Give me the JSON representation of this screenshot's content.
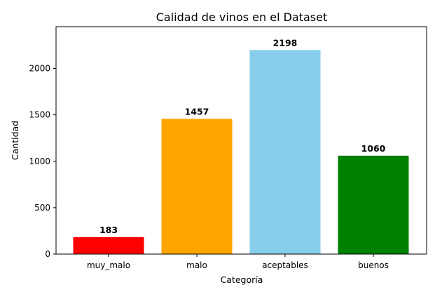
{
  "chart_data": {
    "type": "bar",
    "title": "Calidad de vinos en el Dataset",
    "xlabel": "Categoría",
    "ylabel": "Cantidad",
    "categories": [
      "muy_malo",
      "malo",
      "aceptables",
      "buenos"
    ],
    "values": [
      183,
      1457,
      2198,
      1060
    ],
    "colors": [
      "#ff0000",
      "#ffa500",
      "#87ceeb",
      "#008000"
    ],
    "ylim": [
      0,
      2450
    ],
    "yticks": [
      0,
      500,
      1000,
      1500,
      2000
    ],
    "grid": false
  }
}
